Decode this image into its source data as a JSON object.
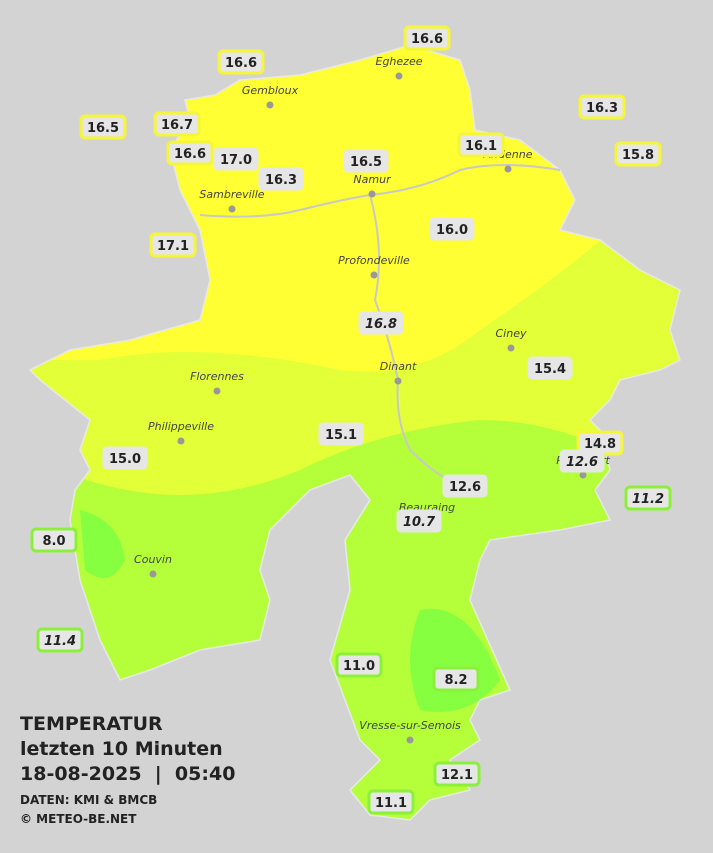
{
  "title": {
    "heading": "TEMPERATUR",
    "subtitle": "letzten 10 Minuten",
    "timestamp": "18-08-2025  |  05:40"
  },
  "credits": [
    "DATEN: KMI & BMCB",
    "© METEO-BE.NET"
  ],
  "cities": [
    "Eghezee",
    "Gembloux",
    "Andenne",
    "Namur",
    "Sambreville",
    "Profondeville",
    "Ciney",
    "Dinant",
    "Florennes",
    "Philippeville",
    "Rochefort",
    "Beauraing",
    "Couvin",
    "Vresse-sur-Semois"
  ],
  "stations": [
    "16.6",
    "16.6",
    "16.5",
    "16.7",
    "16.6",
    "17.0",
    "16.3",
    "16.5",
    "16.1",
    "16.3",
    "15.8",
    "17.1",
    "16.0",
    "16.8",
    "15.4",
    "15.1",
    "15.0",
    "14.8",
    "12.6",
    "12.6",
    "10.7",
    "11.2",
    "8.0",
    "11.4",
    "11.0",
    "8.2",
    "12.1",
    "11.1"
  ]
}
